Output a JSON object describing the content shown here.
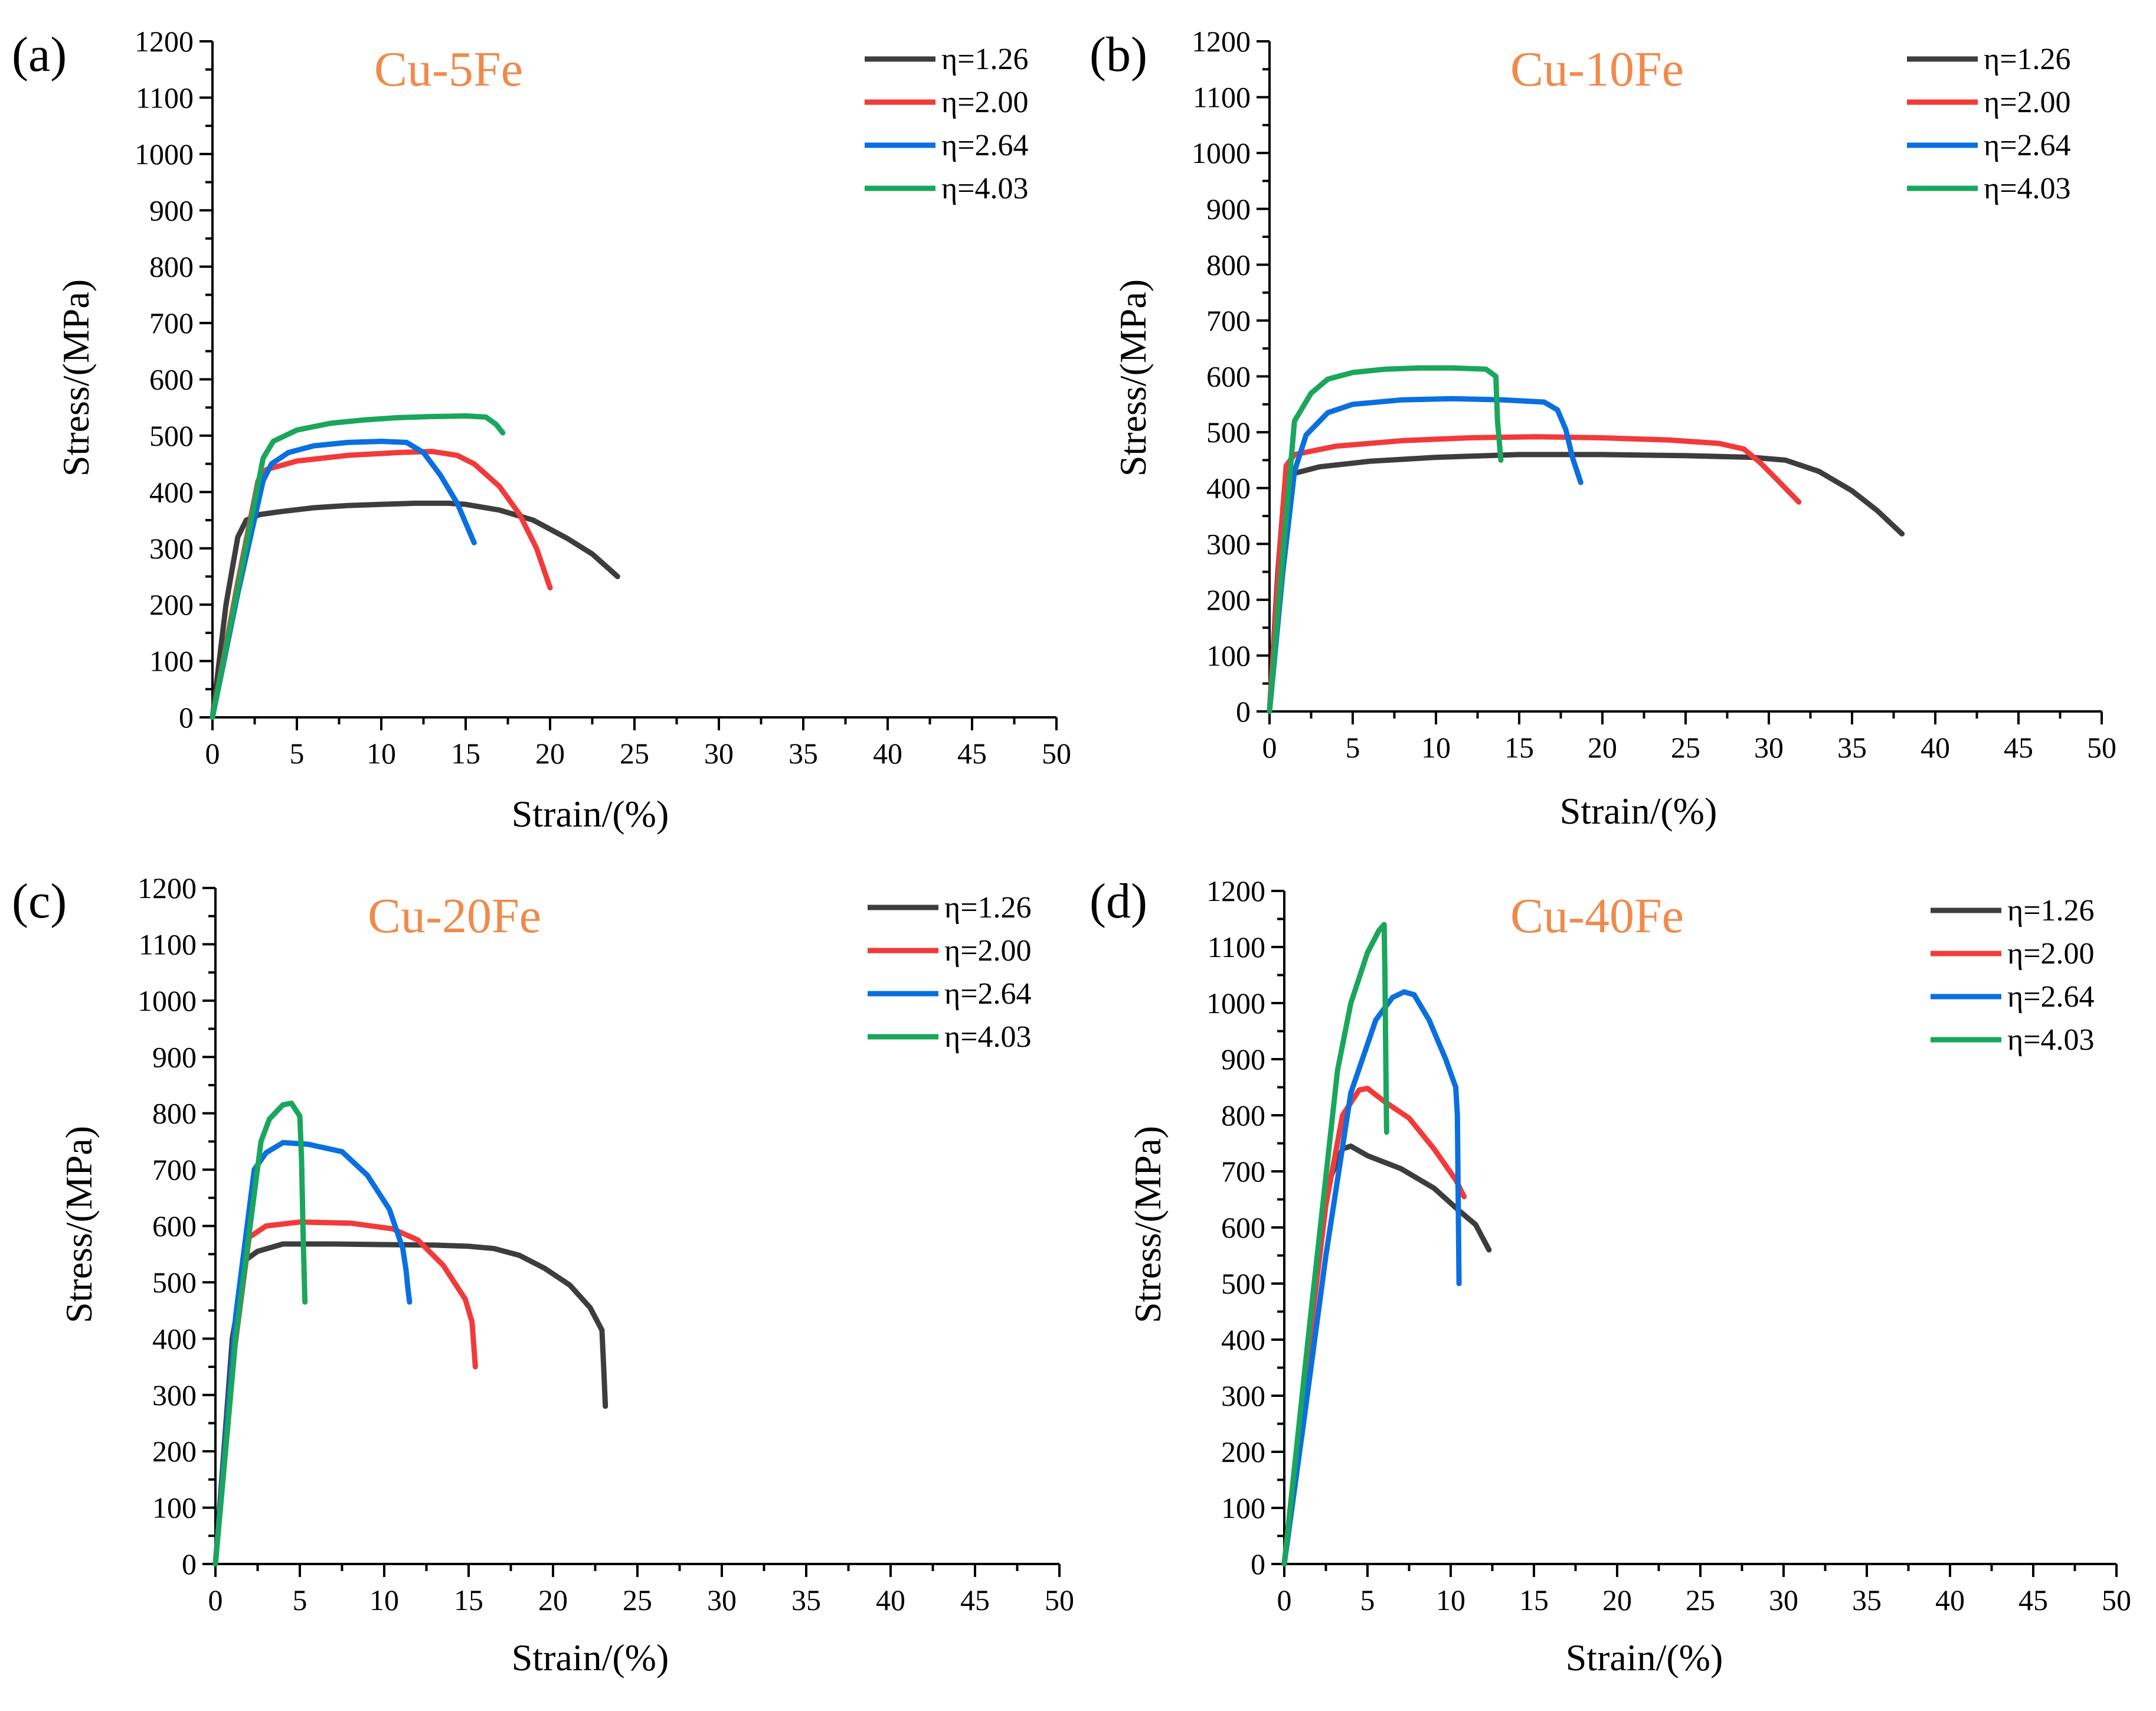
{
  "colors": {
    "eta_1_26": "#3d3d3d",
    "eta_2_00": "#f23a3a",
    "eta_2_64": "#0a6fe0",
    "eta_4_03": "#1aa65c",
    "title": "#f08a4b"
  },
  "chart_data": [
    {
      "type": "line",
      "panel_label": "(a)",
      "title": "Cu-5Fe",
      "xlabel": "Strain/(%)",
      "ylabel": "Stress/(MPa)",
      "xlim": [
        0,
        50
      ],
      "ylim": [
        0,
        1200
      ],
      "xticks": [
        "0",
        "5",
        "10",
        "15",
        "20",
        "25",
        "30",
        "35",
        "40",
        "45",
        "50"
      ],
      "yticks": [
        "0",
        "100",
        "200",
        "300",
        "400",
        "500",
        "600",
        "700",
        "800",
        "900",
        "1000",
        "1100",
        "1200"
      ],
      "legend_position": "top-right",
      "series": [
        {
          "name": "η=1.26",
          "color_key": "eta_1_26",
          "x": [
            0,
            0.8,
            1.5,
            2.0,
            2.8,
            4,
            6,
            8,
            10,
            12,
            14,
            15,
            17,
            19,
            21,
            22.5,
            24
          ],
          "y": [
            0,
            200,
            320,
            350,
            360,
            365,
            372,
            376,
            378,
            380,
            380,
            378,
            368,
            350,
            318,
            290,
            250
          ]
        },
        {
          "name": "η=2.00",
          "color_key": "eta_2_00",
          "x": [
            0,
            1.5,
            2.7,
            3.2,
            5,
            8,
            11,
            13,
            14.5,
            15.5,
            17,
            18.2,
            19.2,
            20
          ],
          "y": [
            0,
            240,
            420,
            440,
            455,
            465,
            470,
            472,
            465,
            450,
            410,
            360,
            300,
            230
          ]
        },
        {
          "name": "η=2.64",
          "color_key": "eta_2_64",
          "x": [
            0,
            1.5,
            3.0,
            3.5,
            4.5,
            6,
            8,
            10,
            11.5,
            12.5,
            13.5,
            14.5,
            15.5
          ],
          "y": [
            0,
            220,
            420,
            450,
            470,
            482,
            488,
            490,
            488,
            470,
            430,
            380,
            310
          ]
        },
        {
          "name": "η=4.03",
          "color_key": "eta_4_03",
          "x": [
            0,
            1.5,
            3.0,
            3.6,
            5,
            7,
            9,
            11,
            13,
            15,
            16.2,
            16.8,
            17.2
          ],
          "y": [
            0,
            230,
            460,
            490,
            510,
            522,
            528,
            532,
            534,
            535,
            533,
            520,
            505
          ]
        }
      ]
    },
    {
      "type": "line",
      "panel_label": "(b)",
      "title": "Cu-10Fe",
      "xlabel": "Strain/(%)",
      "ylabel": "Stress/(MPa)",
      "xlim": [
        0,
        50
      ],
      "ylim": [
        0,
        1200
      ],
      "xticks": [
        "0",
        "5",
        "10",
        "15",
        "20",
        "25",
        "30",
        "35",
        "40",
        "45",
        "50"
      ],
      "yticks": [
        "0",
        "100",
        "200",
        "300",
        "400",
        "500",
        "600",
        "700",
        "800",
        "900",
        "1000",
        "1100",
        "1200"
      ],
      "legend_position": "top-right",
      "series": [
        {
          "name": "η=1.26",
          "color_key": "eta_1_26",
          "x": [
            0,
            0.5,
            0.9,
            1.3,
            3,
            6,
            10,
            15,
            20,
            25,
            29,
            31,
            33,
            35,
            36.5,
            38
          ],
          "y": [
            0,
            250,
            400,
            425,
            438,
            448,
            455,
            460,
            460,
            458,
            455,
            450,
            430,
            395,
            360,
            318
          ]
        },
        {
          "name": "η=2.00",
          "color_key": "eta_2_00",
          "x": [
            0,
            0.6,
            1.0,
            1.5,
            4,
            8,
            12,
            16,
            20,
            24,
            27,
            28.5,
            29.5,
            30.5,
            31.8
          ],
          "y": [
            0,
            280,
            440,
            460,
            475,
            485,
            490,
            492,
            490,
            486,
            480,
            470,
            445,
            415,
            375
          ]
        },
        {
          "name": "η=2.64",
          "color_key": "eta_2_64",
          "x": [
            0,
            0.8,
            1.5,
            2.2,
            3.5,
            5,
            8,
            11,
            14,
            16.5,
            17.3,
            17.8,
            18.2,
            18.7
          ],
          "y": [
            0,
            250,
            430,
            495,
            535,
            550,
            558,
            560,
            558,
            554,
            540,
            505,
            455,
            410
          ]
        },
        {
          "name": "η=4.03",
          "color_key": "eta_4_03",
          "x": [
            0,
            0.8,
            1.5,
            2.5,
            3.5,
            5,
            7,
            9,
            11,
            13,
            13.6,
            13.7,
            13.9
          ],
          "y": [
            0,
            280,
            520,
            570,
            595,
            607,
            613,
            615,
            615,
            613,
            600,
            520,
            450
          ]
        }
      ]
    },
    {
      "type": "line",
      "panel_label": "(c)",
      "title": "Cu-20Fe",
      "xlabel": "Strain/(%)",
      "ylabel": "Stress/(MPa)",
      "xlim": [
        0,
        50
      ],
      "ylim": [
        0,
        1200
      ],
      "xticks": [
        "0",
        "5",
        "10",
        "15",
        "20",
        "25",
        "30",
        "35",
        "40",
        "45",
        "50"
      ],
      "yticks": [
        "0",
        "100",
        "200",
        "300",
        "400",
        "500",
        "600",
        "700",
        "800",
        "900",
        "1000",
        "1100",
        "1200"
      ],
      "legend_position": "top-right",
      "series": [
        {
          "name": "η=1.26",
          "color_key": "eta_1_26",
          "x": [
            0,
            1.0,
            1.8,
            2.5,
            4,
            7,
            10,
            13,
            15,
            16.5,
            18,
            19.5,
            21,
            22.2,
            22.9,
            23.0,
            23.1
          ],
          "y": [
            0,
            400,
            540,
            555,
            568,
            568,
            567,
            566,
            564,
            560,
            548,
            525,
            495,
            455,
            415,
            350,
            280
          ]
        },
        {
          "name": "η=2.00",
          "color_key": "eta_2_00",
          "x": [
            0,
            1.0,
            2.0,
            3,
            5,
            8,
            10.5,
            12,
            13.5,
            14.8,
            15.2,
            15.3,
            15.4
          ],
          "y": [
            0,
            350,
            580,
            600,
            607,
            605,
            595,
            575,
            530,
            470,
            430,
            390,
            350
          ]
        },
        {
          "name": "η=2.64",
          "color_key": "eta_2_64",
          "x": [
            0,
            1.2,
            2.3,
            3,
            4,
            5.5,
            7.5,
            9,
            10.3,
            11.1,
            11.3,
            11.4,
            11.5
          ],
          "y": [
            0,
            440,
            700,
            730,
            748,
            745,
            732,
            690,
            630,
            560,
            520,
            490,
            465
          ]
        },
        {
          "name": "η=4.03",
          "color_key": "eta_4_03",
          "x": [
            0,
            1.2,
            2.7,
            3.2,
            4.0,
            4.5,
            5.0,
            5.1,
            5.2,
            5.3
          ],
          "y": [
            0,
            400,
            750,
            790,
            815,
            818,
            795,
            720,
            580,
            465
          ]
        }
      ]
    },
    {
      "type": "line",
      "panel_label": "(d)",
      "title": "Cu-40Fe",
      "xlabel": "Strain/(%)",
      "ylabel": "Stress/(MPa)",
      "xlim": [
        0,
        50
      ],
      "ylim": [
        0,
        1200
      ],
      "xticks": [
        "0",
        "5",
        "10",
        "15",
        "20",
        "25",
        "30",
        "35",
        "40",
        "45",
        "50"
      ],
      "yticks": [
        "0",
        "100",
        "200",
        "300",
        "400",
        "500",
        "600",
        "700",
        "800",
        "900",
        "1000",
        "1100",
        "1200"
      ],
      "legend_position": "top-right",
      "series": [
        {
          "name": "η=1.26",
          "color_key": "eta_1_26",
          "x": [
            0,
            1.2,
            2.5,
            3.5,
            4.0,
            5.0,
            7.0,
            9.0,
            10.5,
            11.5,
            12.3
          ],
          "y": [
            0,
            330,
            670,
            740,
            745,
            728,
            705,
            670,
            630,
            605,
            560
          ]
        },
        {
          "name": "η=2.00",
          "color_key": "eta_2_00",
          "x": [
            0,
            1.2,
            2.5,
            3.5,
            4.5,
            5.0,
            6.0,
            7.5,
            9.0,
            10.3,
            10.8
          ],
          "y": [
            0,
            320,
            640,
            800,
            845,
            848,
            825,
            795,
            740,
            685,
            655
          ]
        },
        {
          "name": "η=2.64",
          "color_key": "eta_2_64",
          "x": [
            0,
            1.2,
            2.5,
            4,
            5.5,
            6.5,
            7.2,
            7.8,
            8.7,
            9.7,
            10.3,
            10.4,
            10.45,
            10.5
          ],
          "y": [
            0,
            260,
            550,
            840,
            970,
            1010,
            1020,
            1015,
            970,
            900,
            850,
            800,
            650,
            500
          ]
        },
        {
          "name": "η=4.03",
          "color_key": "eta_4_03",
          "x": [
            0,
            1.5,
            3.2,
            4.0,
            5.0,
            5.7,
            6.0,
            6.05,
            6.1,
            6.15
          ],
          "y": [
            0,
            420,
            880,
            1000,
            1090,
            1130,
            1140,
            1050,
            900,
            770
          ]
        }
      ]
    }
  ]
}
